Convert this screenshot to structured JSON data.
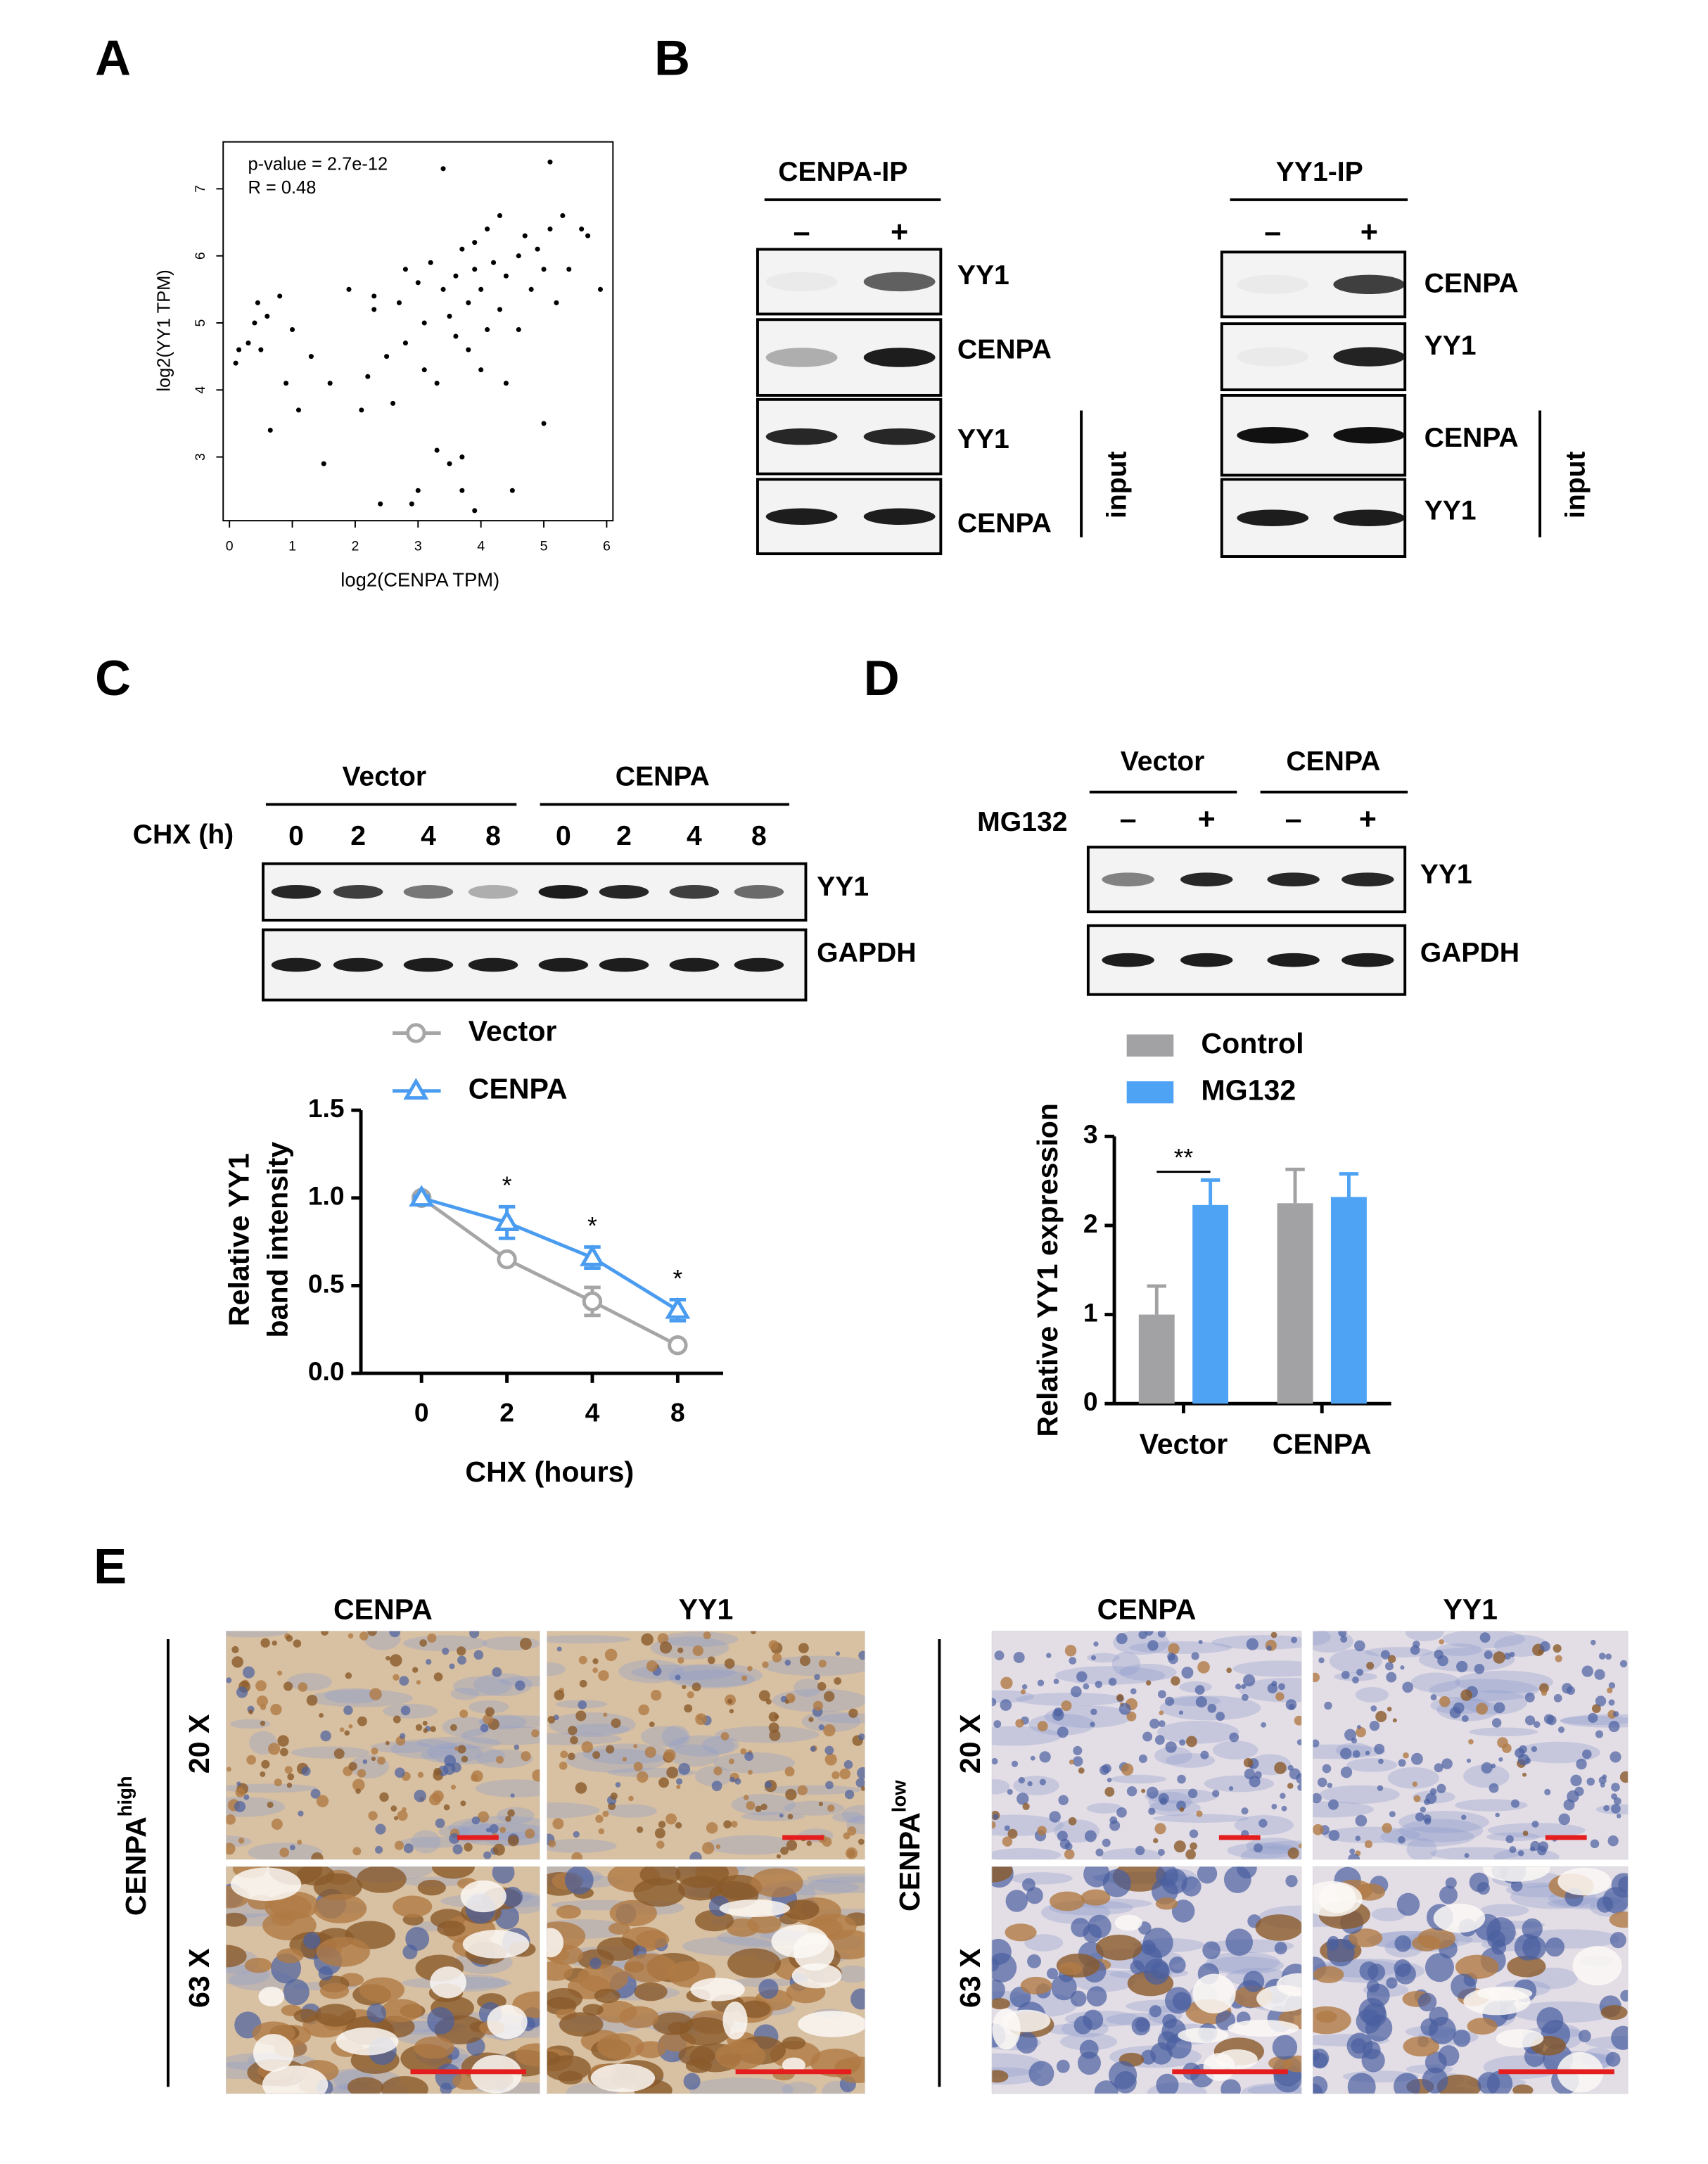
{
  "figure": {
    "panels": [
      "A",
      "B",
      "C",
      "D",
      "E"
    ],
    "B": {
      "left": {
        "title": "CENPA-IP",
        "lanes": [
          "–",
          "+"
        ],
        "rows": [
          "YY1",
          "CENPA",
          "YY1",
          "CENPA"
        ],
        "group": "input"
      },
      "right": {
        "title": "YY1-IP",
        "lanes": [
          "–",
          "+"
        ],
        "rows": [
          "CENPA",
          "YY1",
          "CENPA",
          "YY1"
        ],
        "group": "input"
      }
    },
    "C_blot": {
      "groups": [
        "Vector",
        "CENPA"
      ],
      "row_label": "CHX (h)",
      "lanes": [
        "0",
        "2",
        "4",
        "8",
        "0",
        "2",
        "4",
        "8"
      ],
      "rows": [
        "YY1",
        "GAPDH"
      ]
    },
    "D_blot": {
      "groups": [
        "Vector",
        "CENPA"
      ],
      "row_label": "MG132",
      "lanes": [
        "–",
        "+",
        "–",
        "+"
      ],
      "rows": [
        "YY1",
        "GAPDH"
      ]
    },
    "E": {
      "columns": [
        "CENPA",
        "YY1",
        "CENPA",
        "YY1"
      ],
      "magnifications": [
        "20 X",
        "63 X",
        "20 X",
        "63 X"
      ],
      "groups": [
        {
          "name": "CENPA",
          "sup": "high"
        },
        {
          "name": "CENPA",
          "sup": "low"
        }
      ]
    }
  },
  "chart_data": [
    {
      "type": "scatter",
      "annotations": [
        "p-value = 2.7e-12",
        "R = 0.48"
      ],
      "xlabel": "log2(CENPA TPM)",
      "ylabel": "log2(YY1 TPM)",
      "x": [
        0.1,
        0.15,
        0.3,
        0.4,
        0.45,
        0.5,
        0.6,
        0.65,
        0.8,
        0.9,
        1.0,
        1.1,
        1.3,
        1.5,
        1.6,
        1.9,
        2.1,
        2.2,
        2.3,
        2.3,
        2.4,
        2.5,
        2.6,
        2.7,
        2.8,
        2.8,
        2.9,
        3.0,
        3.0,
        3.1,
        3.1,
        3.2,
        3.3,
        3.3,
        3.4,
        3.4,
        3.5,
        3.5,
        3.6,
        3.6,
        3.7,
        3.7,
        3.7,
        3.8,
        3.8,
        3.9,
        3.9,
        3.9,
        4.0,
        4.0,
        4.1,
        4.1,
        4.2,
        4.3,
        4.3,
        4.4,
        4.4,
        4.5,
        4.6,
        4.6,
        4.7,
        4.8,
        4.9,
        5.0,
        5.0,
        5.1,
        5.1,
        5.2,
        5.3,
        5.4,
        5.6,
        5.7,
        5.9
      ],
      "y": [
        4.4,
        4.6,
        4.7,
        5.0,
        5.3,
        4.6,
        5.1,
        3.4,
        5.4,
        4.1,
        4.9,
        3.7,
        4.5,
        2.9,
        4.1,
        5.5,
        3.7,
        4.2,
        5.2,
        5.4,
        2.3,
        4.5,
        3.8,
        5.3,
        5.8,
        4.7,
        2.3,
        2.5,
        5.6,
        4.3,
        5.0,
        5.9,
        3.1,
        4.1,
        5.5,
        7.3,
        5.1,
        2.9,
        5.7,
        4.8,
        6.1,
        3.0,
        2.5,
        5.3,
        4.6,
        6.2,
        5.8,
        2.2,
        5.5,
        4.3,
        6.4,
        4.9,
        5.9,
        6.6,
        5.2,
        4.1,
        5.7,
        2.5,
        6.0,
        4.9,
        6.3,
        5.5,
        6.1,
        5.8,
        3.5,
        7.4,
        6.4,
        5.3,
        6.6,
        5.8,
        6.4,
        6.3,
        5.5
      ],
      "color": "#000000",
      "xlim": [
        -0.1,
        6.1
      ],
      "ylim": [
        2.05,
        7.7
      ],
      "xticks": [
        0,
        1,
        2,
        3,
        4,
        5,
        6
      ],
      "yticks": [
        3,
        4,
        5,
        6,
        7
      ]
    },
    {
      "type": "line",
      "xlabel": "CHX (hours)",
      "ylabel": [
        "Relative YY1",
        "band intensity"
      ],
      "categories": [
        "0",
        "2",
        "4",
        "8"
      ],
      "series": [
        {
          "name": "Vector",
          "color": "#a6a6a6",
          "marker": "circle",
          "values": [
            1.0,
            0.65,
            0.41,
            0.16
          ],
          "errors": [
            0.01,
            0.02,
            0.08,
            0.02
          ]
        },
        {
          "name": "CENPA",
          "color": "#4a9cf0",
          "marker": "triangle",
          "values": [
            1.0,
            0.86,
            0.66,
            0.36
          ],
          "errors": [
            0.01,
            0.09,
            0.06,
            0.06
          ]
        }
      ],
      "ylim": [
        0,
        1.5
      ],
      "yticks": [
        {
          "value": 0,
          "label": "0.0"
        },
        {
          "value": 0.5,
          "label": "0.5"
        },
        {
          "value": 1,
          "label": "1.0"
        },
        {
          "value": 1.5,
          "label": "1.5"
        }
      ],
      "annotations": [
        {
          "text": "*",
          "x": "2"
        },
        {
          "text": "*",
          "x": "4"
        },
        {
          "text": "*",
          "x": "8"
        }
      ],
      "legend": "top-left"
    },
    {
      "type": "bar",
      "ylabel": "Relative YY1 expression",
      "categories": [
        "Vector",
        "CENPA"
      ],
      "series": [
        {
          "name": "Control",
          "color": "#a2a2a4",
          "values": [
            1.0,
            2.25
          ],
          "errors": [
            0.32,
            0.38
          ]
        },
        {
          "name": "MG132",
          "color": "#4ea3f5",
          "values": [
            2.23,
            2.32
          ],
          "errors": [
            0.28,
            0.26
          ]
        }
      ],
      "ylim": [
        0,
        3
      ],
      "yticks": [
        0,
        1,
        2,
        3
      ],
      "annotations": [
        {
          "text": "**",
          "category": "Vector"
        }
      ],
      "legend": "top-left"
    }
  ]
}
